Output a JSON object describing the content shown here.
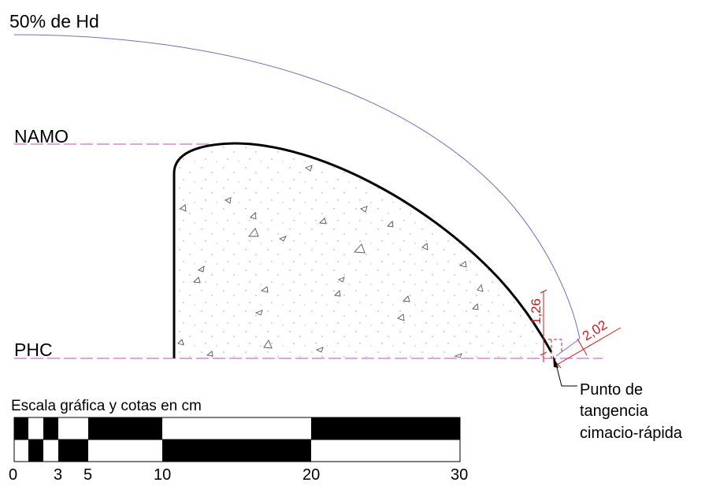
{
  "labels": {
    "hd_curve": "50% de Hd",
    "namo": "NAMO",
    "phc": "PHC"
  },
  "dimensions": {
    "vertical": "1,26",
    "diagonal": "2,02"
  },
  "callout": {
    "line1": "Punto de",
    "line2": "tangencia",
    "line3": "cimacio-rápida"
  },
  "scale_bar": {
    "title": "Escala gráfica y cotas en cm",
    "ticks": [
      "0",
      "3",
      "5",
      "10",
      "20",
      "30"
    ]
  },
  "colors": {
    "level_lines": "#c04bc0",
    "hd_curve": "#6f6fc8",
    "dimensions": "#d01818",
    "profile": "#000000"
  }
}
